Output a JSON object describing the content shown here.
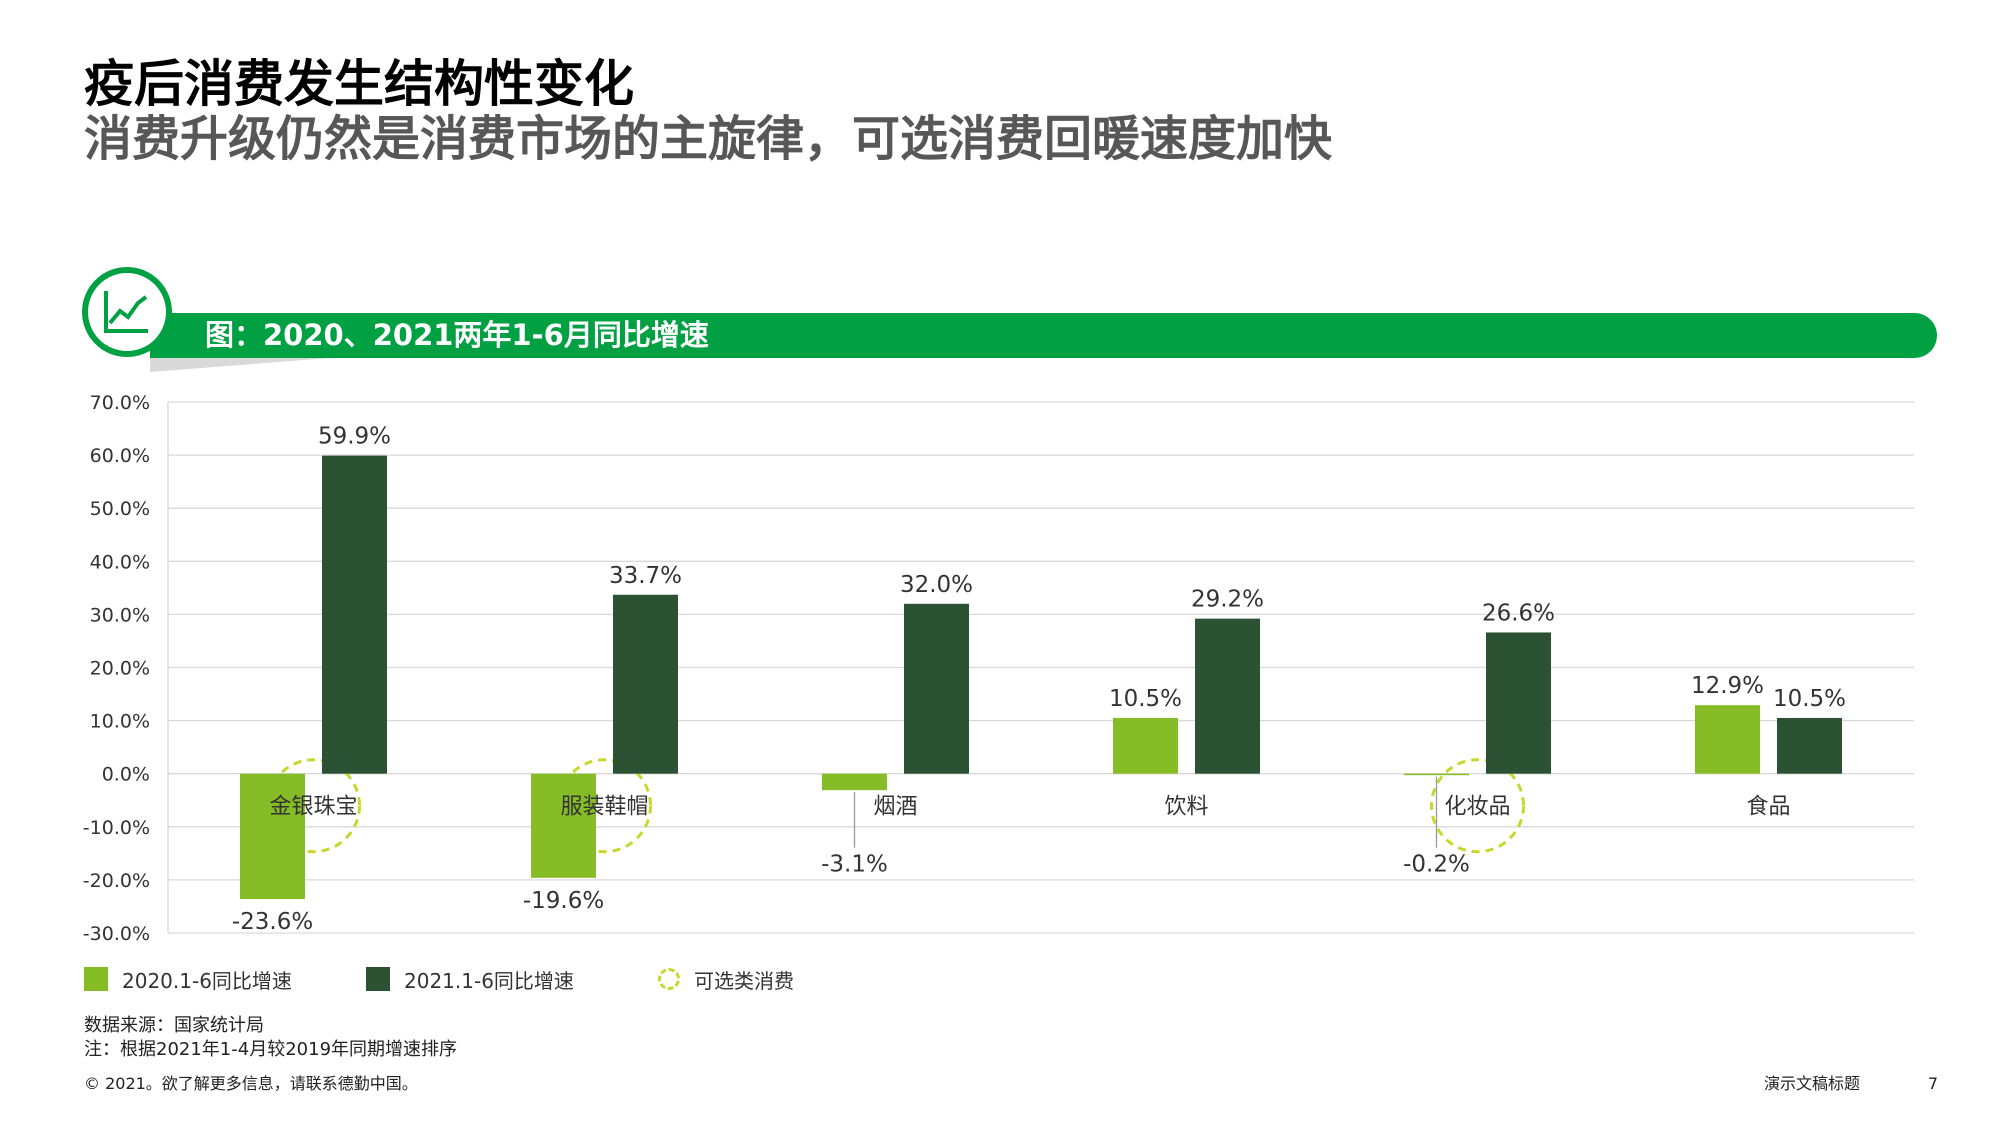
{
  "slide": {
    "title": "疫后消费发生结构性变化",
    "subtitle": "消费升级仍然是消费市场的主旋律，可选消费回暖速度加快",
    "banner_text": "图：2020、2021两年1-6月同比增速",
    "source": "数据来源：国家统计局",
    "note": "注：根据2021年1-4月较2019年同期增速排序",
    "copyright": "© 2021。欲了解更多信息，请联系德勤中国。",
    "footer_title": "演示文稿标题",
    "page_number": "7"
  },
  "chart_data": {
    "type": "bar",
    "categories": [
      "金银珠宝",
      "服装鞋帽",
      "烟酒",
      "饮料",
      "化妆品",
      "食品"
    ],
    "series": [
      {
        "name": "2020.1-6同比增速",
        "values": [
          -23.6,
          -19.6,
          -3.1,
          10.5,
          -0.2,
          12.9
        ],
        "color": "#86bc25"
      },
      {
        "name": "2021.1-6同比增速",
        "values": [
          59.9,
          33.7,
          32.0,
          29.2,
          26.6,
          10.5
        ],
        "color": "#2c5234"
      }
    ],
    "highlight_name": "可选类消费",
    "highlight_color": "#c6d82c",
    "highlighted_categories": [
      "金银珠宝",
      "服装鞋帽",
      "化妆品"
    ],
    "ylim": [
      -30,
      70
    ],
    "yticks": [
      -30,
      -20,
      -10,
      0,
      10,
      20,
      30,
      40,
      50,
      60,
      70
    ],
    "value_suffix": "%",
    "grid": true,
    "legend_position": "bottom"
  }
}
